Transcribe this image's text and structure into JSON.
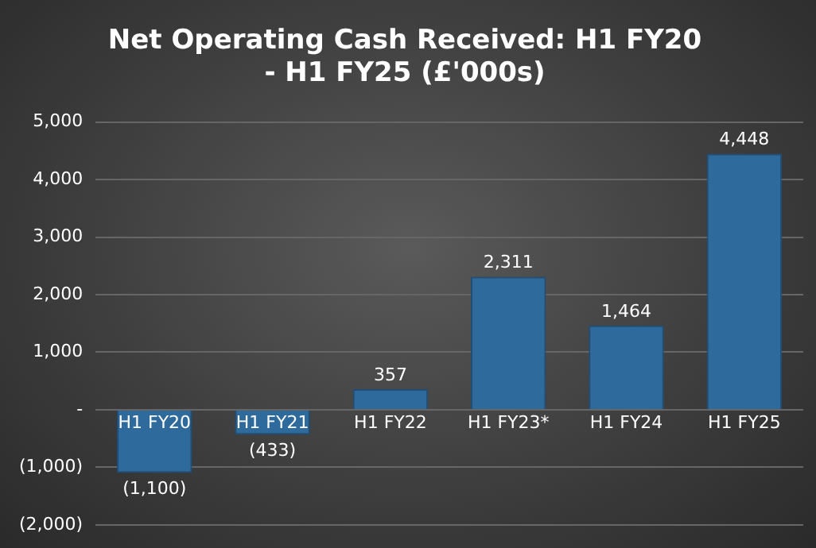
{
  "chart_data": {
    "type": "bar",
    "title": [
      "Net Operating Cash Received: H1 FY20",
      "- H1 FY25 (£'000s)"
    ],
    "categories": [
      "H1 FY20",
      "H1 FY21",
      "H1 FY22",
      "H1 FY23*",
      "H1 FY24",
      "H1 FY25"
    ],
    "values": [
      -1100,
      -433,
      357,
      2311,
      1464,
      4448
    ],
    "value_labels": [
      "(1,100)",
      "(433)",
      "357",
      "2,311",
      "1,464",
      "4,448"
    ],
    "color": "#2f6a9c",
    "ylim": [
      -2000,
      5000
    ],
    "yticks": [
      {
        "value": -2000,
        "label": "(2,000)"
      },
      {
        "value": -1000,
        "label": "(1,000)"
      },
      {
        "value": 0,
        "label": "-"
      },
      {
        "value": 1000,
        "label": "1,000"
      },
      {
        "value": 2000,
        "label": "2,000"
      },
      {
        "value": 3000,
        "label": "3,000"
      },
      {
        "value": 4000,
        "label": "4,000"
      },
      {
        "value": 5000,
        "label": "5,000"
      }
    ],
    "grid": "y"
  }
}
